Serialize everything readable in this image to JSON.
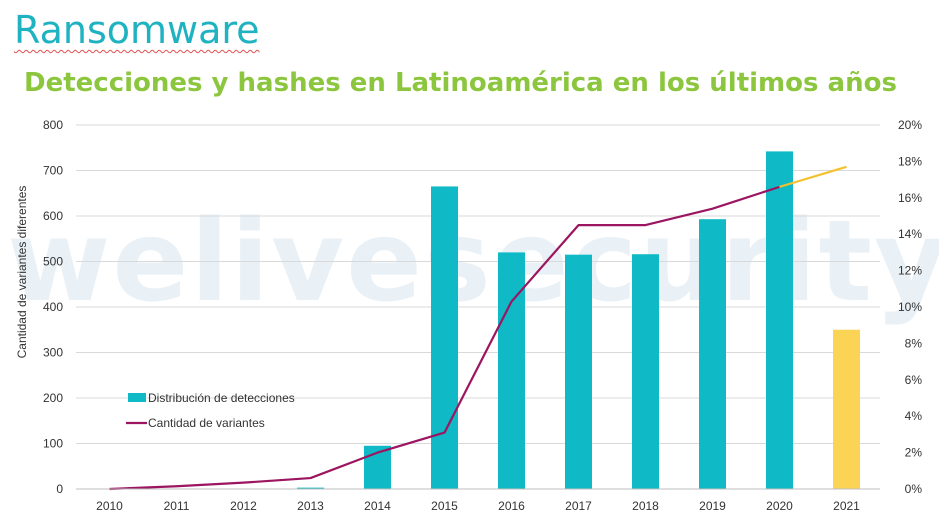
{
  "header": {
    "title": "Ransomware"
  },
  "watermark": "welivesecurity",
  "colors": {
    "bar": "#0fb9c6",
    "bar_highlight": "#fbd455",
    "line": "#9b1560",
    "line_projection": "#f2c12e",
    "title": "#8cc63f",
    "header": "#1fb2c1"
  },
  "chart_data": {
    "type": "bar",
    "title": "Detecciones y hashes en Latinoamérica en los últimos años",
    "ylabel": "Cantidad de variantes diferentes",
    "y2label": "",
    "ylim": [
      0,
      800
    ],
    "y2lim": [
      0,
      20
    ],
    "yticks": [
      "0",
      "100",
      "200",
      "300",
      "400",
      "500",
      "600",
      "700",
      "800"
    ],
    "y2ticks": [
      "0%",
      "2%",
      "4%",
      "6%",
      "8%",
      "10%",
      "12%",
      "14%",
      "16%",
      "18%",
      "20%"
    ],
    "categories": [
      "2010",
      "2011",
      "2012",
      "2013",
      "2014",
      "2015",
      "2016",
      "2017",
      "2018",
      "2019",
      "2020",
      "2021"
    ],
    "grid": true,
    "legend_position": "left",
    "series": [
      {
        "name": "Distribución de detecciones",
        "kind": "bar",
        "axis": "left",
        "values": [
          0,
          0,
          0,
          3,
          95,
          665,
          520,
          515,
          516,
          593,
          742,
          350
        ],
        "highlight_last": true
      },
      {
        "name": "Cantidad de variantes",
        "kind": "line",
        "axis": "right",
        "values": [
          0.0,
          0.15,
          0.35,
          0.6,
          2.0,
          3.1,
          10.3,
          14.5,
          14.5,
          15.4,
          16.6,
          17.7
        ],
        "projection_from_index": 10
      }
    ]
  }
}
